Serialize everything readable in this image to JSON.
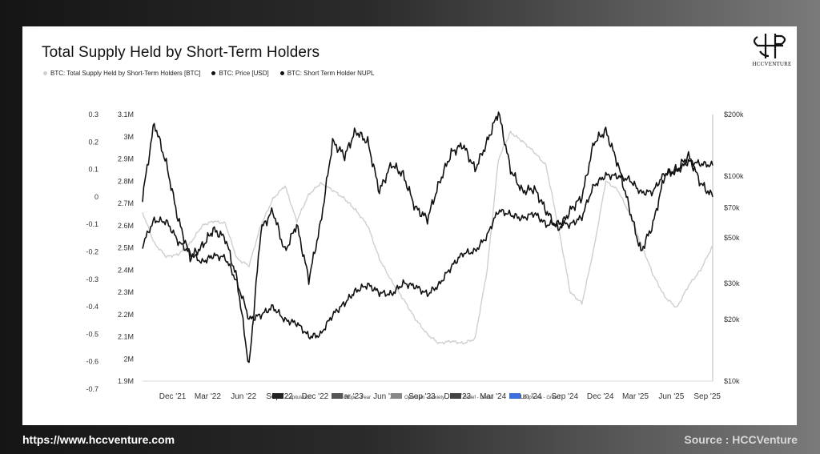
{
  "footer": {
    "url": "https://www.hccventure.com",
    "source": "Source : HCCVenture"
  },
  "logo": {
    "text": "HCCVENTURE"
  },
  "chart_data": {
    "type": "line",
    "title": "Total Supply Held by Short-Term Holders",
    "legend": [
      {
        "label": "BTC: Total Supply Held by Short-Term Holders [BTC]",
        "color": "#cfcfcf"
      },
      {
        "label": "BTC: Price [USD]",
        "color": "#111111"
      },
      {
        "label": "BTC: Short Term Holder NUPL",
        "color": "#111111"
      }
    ],
    "x_ticks": [
      "Dec '21",
      "Mar '22",
      "Jun '22",
      "Sep '22",
      "Dec '22",
      "Mar '23",
      "Jun '23",
      "Sep '23",
      "Dec '23",
      "Mar '24",
      "Jun '24",
      "Sep '24",
      "Dec '24",
      "Mar '25",
      "Jun '25",
      "Sep '25"
    ],
    "xlim": [
      "2021-09-15",
      "2025-09-15"
    ],
    "left_axis": {
      "ticks": [
        "0.3",
        "0.2",
        "0.1",
        "0",
        "-0.1",
        "-0.2",
        "-0.3",
        "-0.4",
        "-0.5",
        "-0.6",
        "-0.7"
      ],
      "range": [
        -0.7,
        0.3
      ]
    },
    "mid_axis": {
      "ticks": [
        "3.1M",
        "3M",
        "2.9M",
        "2.8M",
        "2.7M",
        "2.6M",
        "2.5M",
        "2.4M",
        "2.3M",
        "2.2M",
        "2.1M",
        "2M",
        "1.9M"
      ],
      "range": [
        1900000,
        3100000
      ]
    },
    "right_axis": {
      "scale": "log",
      "ticks": [
        {
          "label": "$200k",
          "value": 200000
        },
        {
          "label": "$100k",
          "value": 100000
        },
        {
          "label": "$70k",
          "value": 70000
        },
        {
          "label": "$50k",
          "value": 50000
        },
        {
          "label": "$30k",
          "value": 30000
        },
        {
          "label": "$20k",
          "value": 20000
        },
        {
          "label": "$10k",
          "value": 10000
        }
      ],
      "range": [
        10000,
        200000
      ]
    },
    "zone_legend": [
      {
        "label": "Capitulation",
        "color": "#222222"
      },
      {
        "label": "Hope - Fear",
        "color": "#555555"
      },
      {
        "label": "Optimism - Anxiety",
        "color": "#888888"
      },
      {
        "label": "Belief - Denial",
        "color": "#444444"
      },
      {
        "label": "Euphoria - Greed",
        "color": "#3f6fd8"
      }
    ],
    "series": [
      {
        "name": "BTC: Total Supply Held by Short-Term Holders [BTC]",
        "axis": "mid",
        "color": "#cfcfcf",
        "points": [
          [
            "2021-09-15",
            2660000
          ],
          [
            "2021-10-15",
            2520000
          ],
          [
            "2021-11-15",
            2460000
          ],
          [
            "2021-12-15",
            2470000
          ],
          [
            "2022-01-15",
            2520000
          ],
          [
            "2022-02-15",
            2600000
          ],
          [
            "2022-03-15",
            2620000
          ],
          [
            "2022-04-15",
            2610000
          ],
          [
            "2022-05-15",
            2450000
          ],
          [
            "2022-06-15",
            2420000
          ],
          [
            "2022-07-15",
            2600000
          ],
          [
            "2022-08-15",
            2720000
          ],
          [
            "2022-09-15",
            2780000
          ],
          [
            "2022-10-15",
            2620000
          ],
          [
            "2022-11-15",
            2740000
          ],
          [
            "2022-12-15",
            2790000
          ],
          [
            "2023-01-15",
            2760000
          ],
          [
            "2023-02-15",
            2720000
          ],
          [
            "2023-03-15",
            2670000
          ],
          [
            "2023-04-15",
            2600000
          ],
          [
            "2023-05-15",
            2450000
          ],
          [
            "2023-06-15",
            2350000
          ],
          [
            "2023-07-15",
            2270000
          ],
          [
            "2023-08-15",
            2180000
          ],
          [
            "2023-09-15",
            2110000
          ],
          [
            "2023-10-15",
            2070000
          ],
          [
            "2023-11-15",
            2080000
          ],
          [
            "2023-12-15",
            2070000
          ],
          [
            "2024-01-15",
            2090000
          ],
          [
            "2024-02-15",
            2400000
          ],
          [
            "2024-03-15",
            2900000
          ],
          [
            "2024-04-15",
            3020000
          ],
          [
            "2024-05-15",
            2980000
          ],
          [
            "2024-06-15",
            2930000
          ],
          [
            "2024-07-15",
            2870000
          ],
          [
            "2024-08-15",
            2600000
          ],
          [
            "2024-09-15",
            2300000
          ],
          [
            "2024-10-15",
            2250000
          ],
          [
            "2024-11-15",
            2500000
          ],
          [
            "2024-12-15",
            2800000
          ],
          [
            "2025-01-15",
            2760000
          ],
          [
            "2025-02-15",
            2650000
          ],
          [
            "2025-03-15",
            2520000
          ],
          [
            "2025-04-15",
            2380000
          ],
          [
            "2025-05-15",
            2280000
          ],
          [
            "2025-06-15",
            2230000
          ],
          [
            "2025-07-15",
            2330000
          ],
          [
            "2025-08-15",
            2400000
          ],
          [
            "2025-09-15",
            2510000
          ]
        ]
      },
      {
        "name": "BTC: Price [USD]",
        "axis": "right",
        "color": "#111111",
        "points": [
          [
            "2021-09-15",
            46000
          ],
          [
            "2021-10-15",
            61000
          ],
          [
            "2021-11-15",
            60000
          ],
          [
            "2021-12-15",
            48000
          ],
          [
            "2022-01-15",
            42000
          ],
          [
            "2022-02-15",
            38000
          ],
          [
            "2022-03-15",
            41000
          ],
          [
            "2022-04-15",
            40000
          ],
          [
            "2022-05-15",
            30000
          ],
          [
            "2022-06-15",
            20000
          ],
          [
            "2022-07-15",
            21000
          ],
          [
            "2022-08-15",
            23000
          ],
          [
            "2022-09-15",
            19800
          ],
          [
            "2022-10-15",
            19200
          ],
          [
            "2022-11-15",
            16500
          ],
          [
            "2022-12-15",
            16800
          ],
          [
            "2023-01-15",
            21000
          ],
          [
            "2023-02-15",
            24000
          ],
          [
            "2023-03-15",
            27500
          ],
          [
            "2023-04-15",
            29500
          ],
          [
            "2023-05-15",
            27000
          ],
          [
            "2023-06-15",
            26500
          ],
          [
            "2023-07-15",
            30000
          ],
          [
            "2023-08-15",
            29000
          ],
          [
            "2023-09-15",
            26500
          ],
          [
            "2023-10-15",
            29500
          ],
          [
            "2023-11-15",
            36000
          ],
          [
            "2023-12-15",
            42000
          ],
          [
            "2024-01-15",
            43000
          ],
          [
            "2024-02-15",
            51000
          ],
          [
            "2024-03-15",
            68000
          ],
          [
            "2024-04-15",
            65000
          ],
          [
            "2024-05-15",
            62000
          ],
          [
            "2024-06-15",
            66000
          ],
          [
            "2024-07-15",
            58000
          ],
          [
            "2024-08-15",
            59000
          ],
          [
            "2024-09-15",
            58000
          ],
          [
            "2024-10-15",
            63000
          ],
          [
            "2024-11-15",
            90000
          ],
          [
            "2024-12-15",
            101000
          ],
          [
            "2025-01-15",
            100000
          ],
          [
            "2025-02-15",
            96000
          ],
          [
            "2025-03-15",
            83000
          ],
          [
            "2025-04-15",
            84000
          ],
          [
            "2025-05-15",
            103000
          ],
          [
            "2025-06-15",
            105000
          ],
          [
            "2025-07-15",
            118000
          ],
          [
            "2025-08-15",
            115000
          ],
          [
            "2025-09-15",
            113000
          ]
        ]
      },
      {
        "name": "BTC: Short Term Holder NUPL",
        "axis": "left",
        "color": "#111111",
        "points": [
          [
            "2021-09-15",
            0.0
          ],
          [
            "2021-10-15",
            0.27
          ],
          [
            "2021-11-15",
            0.12
          ],
          [
            "2021-12-15",
            -0.08
          ],
          [
            "2022-01-15",
            -0.22
          ],
          [
            "2022-02-15",
            -0.18
          ],
          [
            "2022-03-15",
            -0.12
          ],
          [
            "2022-04-15",
            -0.15
          ],
          [
            "2022-05-15",
            -0.3
          ],
          [
            "2022-06-15",
            -0.62
          ],
          [
            "2022-07-15",
            -0.12
          ],
          [
            "2022-08-15",
            -0.05
          ],
          [
            "2022-09-15",
            -0.2
          ],
          [
            "2022-10-15",
            -0.1
          ],
          [
            "2022-11-15",
            -0.3
          ],
          [
            "2022-12-15",
            -0.1
          ],
          [
            "2023-01-15",
            0.2
          ],
          [
            "2023-02-15",
            0.15
          ],
          [
            "2023-03-15",
            0.24
          ],
          [
            "2023-04-15",
            0.2
          ],
          [
            "2023-05-15",
            0.02
          ],
          [
            "2023-06-15",
            0.12
          ],
          [
            "2023-07-15",
            0.08
          ],
          [
            "2023-08-15",
            -0.04
          ],
          [
            "2023-09-15",
            -0.08
          ],
          [
            "2023-10-15",
            0.05
          ],
          [
            "2023-11-15",
            0.16
          ],
          [
            "2023-12-15",
            0.19
          ],
          [
            "2024-01-15",
            0.1
          ],
          [
            "2024-02-15",
            0.2
          ],
          [
            "2024-03-15",
            0.31
          ],
          [
            "2024-04-15",
            0.1
          ],
          [
            "2024-05-15",
            0.02
          ],
          [
            "2024-06-15",
            0.03
          ],
          [
            "2024-07-15",
            -0.05
          ],
          [
            "2024-08-15",
            -0.12
          ],
          [
            "2024-09-15",
            -0.05
          ],
          [
            "2024-10-15",
            0.0
          ],
          [
            "2024-11-15",
            0.2
          ],
          [
            "2024-12-15",
            0.24
          ],
          [
            "2025-01-15",
            0.12
          ],
          [
            "2025-02-15",
            -0.05
          ],
          [
            "2025-03-15",
            -0.2
          ],
          [
            "2025-04-15",
            -0.1
          ],
          [
            "2025-05-15",
            0.08
          ],
          [
            "2025-06-15",
            0.1
          ],
          [
            "2025-07-15",
            0.15
          ],
          [
            "2025-08-15",
            0.05
          ],
          [
            "2025-09-15",
            0.0
          ]
        ]
      }
    ]
  }
}
